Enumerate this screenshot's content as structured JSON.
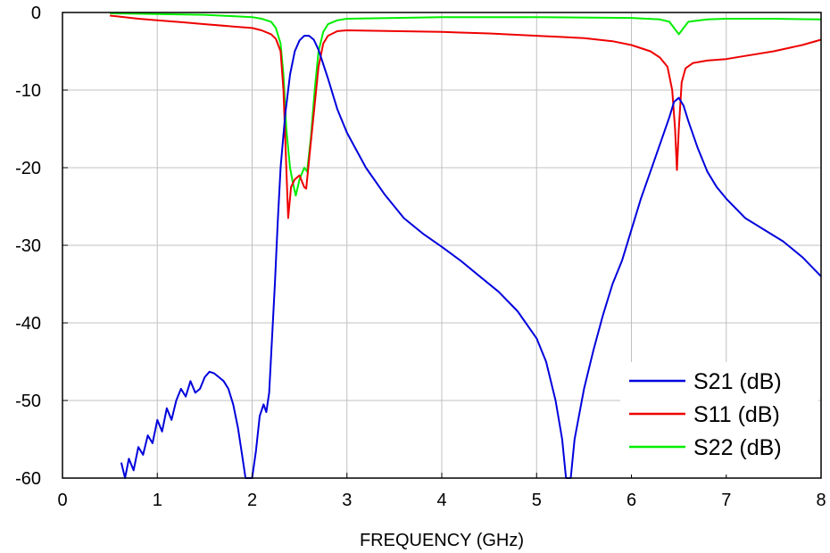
{
  "chart_data": {
    "type": "line",
    "title": "",
    "xlabel": "FREQUENCY (GHz)",
    "ylabel": "",
    "xlim": [
      0,
      8
    ],
    "ylim": [
      -60,
      0
    ],
    "x_ticks": [
      0,
      1,
      2,
      3,
      4,
      5,
      6,
      7,
      8
    ],
    "y_ticks": [
      0,
      -10,
      -20,
      -30,
      -40,
      -50,
      -60
    ],
    "grid": true,
    "legend_position": "bottom-right",
    "series": [
      {
        "name": "S21 (dB)",
        "color": "#0000dd",
        "points": [
          [
            0.62,
            -58.0
          ],
          [
            0.66,
            -60.0
          ],
          [
            0.7,
            -57.5
          ],
          [
            0.75,
            -59.0
          ],
          [
            0.8,
            -56.0
          ],
          [
            0.85,
            -57.0
          ],
          [
            0.9,
            -54.5
          ],
          [
            0.95,
            -55.5
          ],
          [
            1.0,
            -52.5
          ],
          [
            1.05,
            -54.0
          ],
          [
            1.1,
            -51.0
          ],
          [
            1.15,
            -52.5
          ],
          [
            1.2,
            -50.0
          ],
          [
            1.25,
            -48.5
          ],
          [
            1.3,
            -49.5
          ],
          [
            1.35,
            -47.5
          ],
          [
            1.4,
            -49.0
          ],
          [
            1.45,
            -48.5
          ],
          [
            1.5,
            -47.0
          ],
          [
            1.55,
            -46.3
          ],
          [
            1.6,
            -46.5
          ],
          [
            1.65,
            -47.0
          ],
          [
            1.7,
            -47.5
          ],
          [
            1.75,
            -48.5
          ],
          [
            1.8,
            -50.5
          ],
          [
            1.85,
            -53.5
          ],
          [
            1.9,
            -57.5
          ],
          [
            1.93,
            -60.0
          ],
          [
            2.0,
            -60.0
          ],
          [
            2.04,
            -56.5
          ],
          [
            2.08,
            -52.0
          ],
          [
            2.12,
            -50.5
          ],
          [
            2.15,
            -51.5
          ],
          [
            2.18,
            -49.0
          ],
          [
            2.21,
            -42.0
          ],
          [
            2.24,
            -35.0
          ],
          [
            2.27,
            -27.0
          ],
          [
            2.3,
            -20.0
          ],
          [
            2.35,
            -13.0
          ],
          [
            2.4,
            -8.0
          ],
          [
            2.45,
            -5.0
          ],
          [
            2.5,
            -3.6
          ],
          [
            2.55,
            -3.0
          ],
          [
            2.6,
            -3.0
          ],
          [
            2.65,
            -3.5
          ],
          [
            2.7,
            -4.8
          ],
          [
            2.8,
            -8.5
          ],
          [
            2.9,
            -12.5
          ],
          [
            3.0,
            -15.5
          ],
          [
            3.2,
            -20.0
          ],
          [
            3.4,
            -23.5
          ],
          [
            3.6,
            -26.5
          ],
          [
            3.8,
            -28.5
          ],
          [
            4.0,
            -30.2
          ],
          [
            4.2,
            -32.0
          ],
          [
            4.4,
            -34.0
          ],
          [
            4.6,
            -36.0
          ],
          [
            4.8,
            -38.5
          ],
          [
            5.0,
            -42.0
          ],
          [
            5.1,
            -45.0
          ],
          [
            5.2,
            -50.0
          ],
          [
            5.27,
            -55.0
          ],
          [
            5.31,
            -60.0
          ],
          [
            5.36,
            -60.0
          ],
          [
            5.4,
            -55.0
          ],
          [
            5.5,
            -48.5
          ],
          [
            5.6,
            -43.5
          ],
          [
            5.7,
            -39.0
          ],
          [
            5.8,
            -35.0
          ],
          [
            5.9,
            -32.0
          ],
          [
            6.0,
            -28.0
          ],
          [
            6.1,
            -24.0
          ],
          [
            6.2,
            -20.5
          ],
          [
            6.3,
            -17.0
          ],
          [
            6.4,
            -13.5
          ],
          [
            6.45,
            -11.5
          ],
          [
            6.5,
            -11.0
          ],
          [
            6.55,
            -12.0
          ],
          [
            6.6,
            -14.0
          ],
          [
            6.7,
            -17.5
          ],
          [
            6.8,
            -20.5
          ],
          [
            6.9,
            -22.5
          ],
          [
            7.0,
            -24.0
          ],
          [
            7.2,
            -26.5
          ],
          [
            7.4,
            -28.0
          ],
          [
            7.6,
            -29.5
          ],
          [
            7.8,
            -31.5
          ],
          [
            8.0,
            -34.0
          ]
        ]
      },
      {
        "name": "S11 (dB)",
        "color": "#ee0000",
        "points": [
          [
            0.5,
            -0.4
          ],
          [
            0.8,
            -0.8
          ],
          [
            1.0,
            -1.0
          ],
          [
            1.3,
            -1.3
          ],
          [
            1.5,
            -1.5
          ],
          [
            1.8,
            -1.8
          ],
          [
            2.0,
            -2.0
          ],
          [
            2.1,
            -2.3
          ],
          [
            2.2,
            -2.8
          ],
          [
            2.25,
            -3.4
          ],
          [
            2.3,
            -5.0
          ],
          [
            2.33,
            -10.0
          ],
          [
            2.36,
            -20.0
          ],
          [
            2.38,
            -26.5
          ],
          [
            2.41,
            -22.5
          ],
          [
            2.45,
            -21.5
          ],
          [
            2.5,
            -21.0
          ],
          [
            2.55,
            -22.5
          ],
          [
            2.57,
            -22.7
          ],
          [
            2.6,
            -19.0
          ],
          [
            2.65,
            -13.0
          ],
          [
            2.7,
            -7.0
          ],
          [
            2.75,
            -4.0
          ],
          [
            2.8,
            -3.0
          ],
          [
            2.9,
            -2.4
          ],
          [
            3.0,
            -2.3
          ],
          [
            3.5,
            -2.4
          ],
          [
            4.0,
            -2.5
          ],
          [
            4.5,
            -2.7
          ],
          [
            5.0,
            -3.0
          ],
          [
            5.5,
            -3.3
          ],
          [
            5.8,
            -3.7
          ],
          [
            6.0,
            -4.2
          ],
          [
            6.2,
            -5.0
          ],
          [
            6.3,
            -5.8
          ],
          [
            6.38,
            -7.0
          ],
          [
            6.43,
            -10.0
          ],
          [
            6.46,
            -15.0
          ],
          [
            6.48,
            -20.3
          ],
          [
            6.5,
            -15.0
          ],
          [
            6.53,
            -9.0
          ],
          [
            6.57,
            -7.2
          ],
          [
            6.65,
            -6.5
          ],
          [
            6.8,
            -6.2
          ],
          [
            7.0,
            -6.0
          ],
          [
            7.2,
            -5.6
          ],
          [
            7.5,
            -5.0
          ],
          [
            7.8,
            -4.2
          ],
          [
            8.0,
            -3.5
          ]
        ]
      },
      {
        "name": "S22 (dB)",
        "color": "#00ee00",
        "points": [
          [
            0.5,
            -0.1
          ],
          [
            1.0,
            -0.2
          ],
          [
            1.5,
            -0.3
          ],
          [
            2.0,
            -0.6
          ],
          [
            2.1,
            -0.8
          ],
          [
            2.2,
            -1.2
          ],
          [
            2.25,
            -2.0
          ],
          [
            2.3,
            -4.0
          ],
          [
            2.33,
            -8.0
          ],
          [
            2.36,
            -15.0
          ],
          [
            2.4,
            -20.0
          ],
          [
            2.43,
            -22.0
          ],
          [
            2.46,
            -23.6
          ],
          [
            2.5,
            -21.5
          ],
          [
            2.55,
            -20.0
          ],
          [
            2.58,
            -20.5
          ],
          [
            2.62,
            -16.0
          ],
          [
            2.66,
            -10.0
          ],
          [
            2.7,
            -5.0
          ],
          [
            2.75,
            -2.5
          ],
          [
            2.8,
            -1.5
          ],
          [
            2.9,
            -1.0
          ],
          [
            3.0,
            -0.8
          ],
          [
            4.0,
            -0.6
          ],
          [
            5.0,
            -0.6
          ],
          [
            6.0,
            -0.7
          ],
          [
            6.3,
            -0.9
          ],
          [
            6.4,
            -1.2
          ],
          [
            6.45,
            -2.0
          ],
          [
            6.5,
            -2.8
          ],
          [
            6.55,
            -2.0
          ],
          [
            6.6,
            -1.2
          ],
          [
            6.8,
            -0.9
          ],
          [
            7.0,
            -0.8
          ],
          [
            7.5,
            -0.8
          ],
          [
            8.0,
            -0.9
          ]
        ]
      }
    ]
  }
}
